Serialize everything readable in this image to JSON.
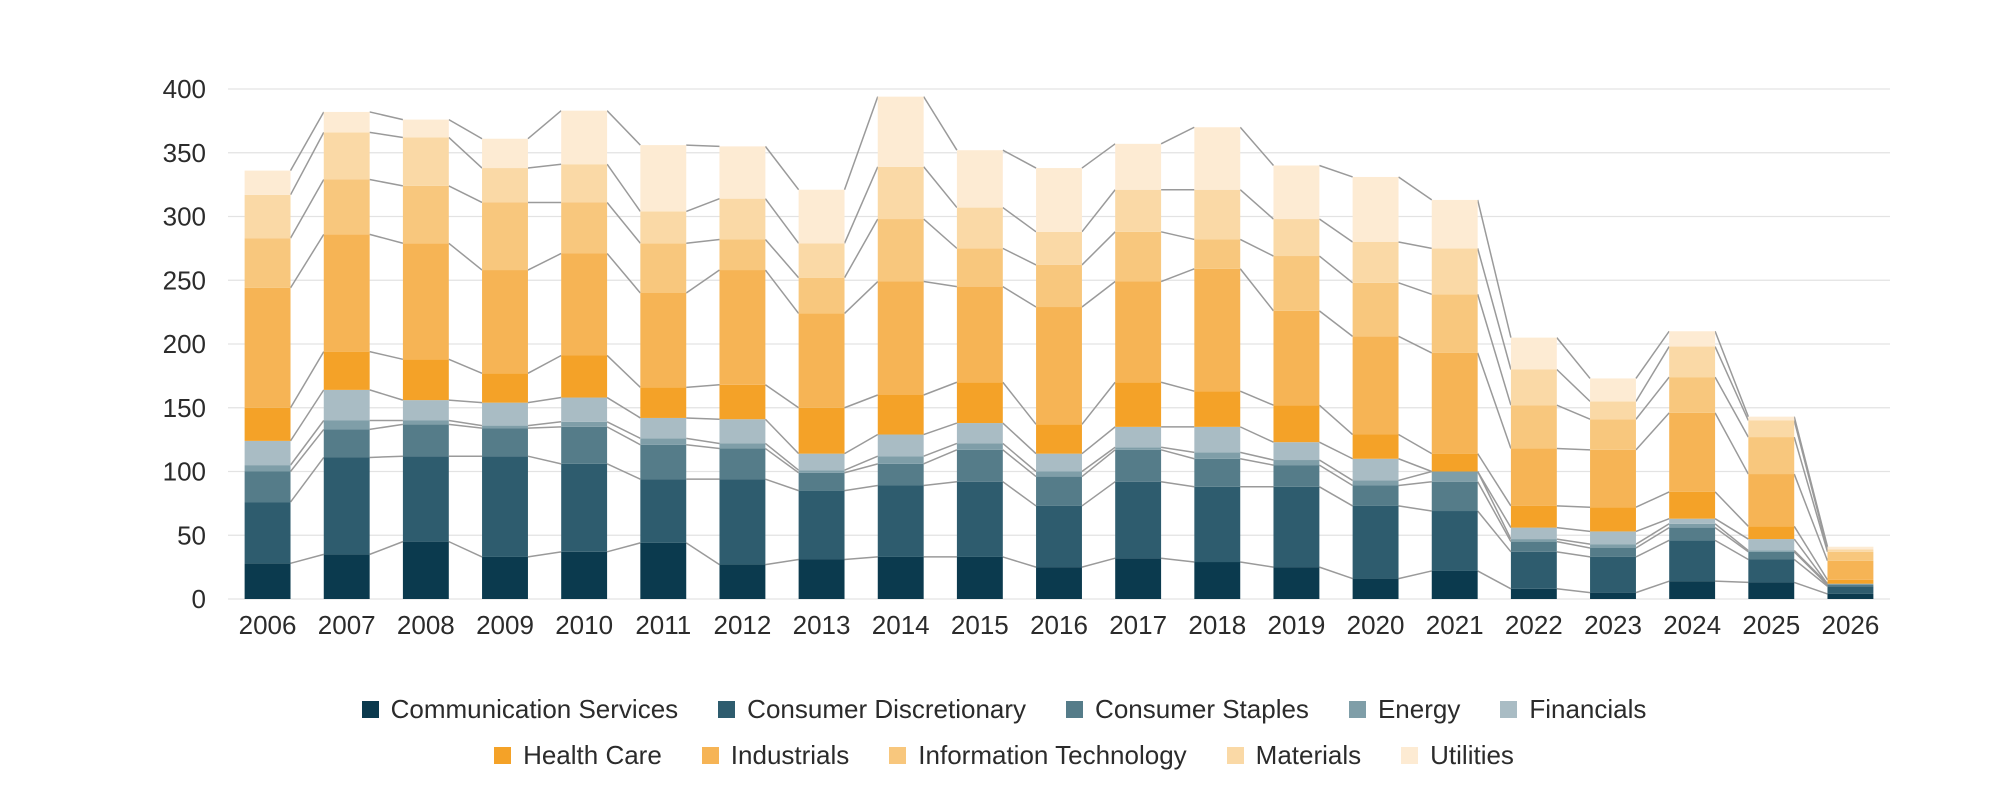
{
  "chart_data": {
    "type": "bar",
    "stacked": true,
    "title": "",
    "xlabel": "",
    "ylabel": "",
    "ylim": [
      0,
      400
    ],
    "yticks": [
      "0",
      "50",
      "100",
      "150",
      "200",
      "250",
      "300",
      "350",
      "400"
    ],
    "grid": true,
    "connector_lines": true,
    "legend_position": "bottom",
    "categories": [
      "2006",
      "2007",
      "2008",
      "2009",
      "2010",
      "2011",
      "2012",
      "2013",
      "2014",
      "2015",
      "2016",
      "2017",
      "2018",
      "2019",
      "2020",
      "2021",
      "2022",
      "2023",
      "2024",
      "2025",
      "2026"
    ],
    "series": [
      {
        "name": "Communication Services",
        "color": "#0b3a4e",
        "values": [
          28,
          35,
          45,
          33,
          37,
          44,
          27,
          31,
          33,
          33,
          25,
          32,
          29,
          25,
          16,
          22,
          8,
          5,
          14,
          13,
          4
        ]
      },
      {
        "name": "Consumer Discretionary",
        "color": "#2e5c6e",
        "values": [
          48,
          76,
          67,
          79,
          69,
          50,
          67,
          54,
          56,
          59,
          48,
          60,
          59,
          63,
          57,
          47,
          29,
          28,
          32,
          18,
          6
        ]
      },
      {
        "name": "Consumer Staples",
        "color": "#557c89",
        "values": [
          24,
          22,
          25,
          22,
          29,
          27,
          24,
          14,
          17,
          25,
          23,
          25,
          22,
          17,
          16,
          23,
          8,
          7,
          10,
          6,
          1
        ]
      },
      {
        "name": "Energy",
        "color": "#7f9ea8",
        "values": [
          5,
          7,
          3,
          2,
          4,
          5,
          4,
          2,
          6,
          5,
          4,
          2,
          5,
          4,
          4,
          8,
          2,
          3,
          3,
          1,
          1
        ]
      },
      {
        "name": "Financials",
        "color": "#a9bcc4",
        "values": [
          19,
          24,
          16,
          18,
          19,
          16,
          19,
          13,
          17,
          16,
          14,
          16,
          20,
          14,
          17,
          0,
          9,
          10,
          4,
          9,
          0
        ]
      },
      {
        "name": "Health Care",
        "color": "#f4a228",
        "values": [
          26,
          30,
          32,
          23,
          33,
          24,
          27,
          36,
          31,
          32,
          23,
          35,
          28,
          29,
          19,
          14,
          17,
          19,
          21,
          10,
          3
        ]
      },
      {
        "name": "Industrials",
        "color": "#f6b455",
        "values": [
          94,
          92,
          91,
          81,
          80,
          74,
          90,
          74,
          89,
          75,
          92,
          79,
          96,
          74,
          77,
          79,
          45,
          45,
          62,
          41,
          15
        ]
      },
      {
        "name": "Information Technology",
        "color": "#f8c77d",
        "values": [
          39,
          43,
          45,
          53,
          40,
          39,
          24,
          28,
          49,
          30,
          33,
          39,
          23,
          43,
          42,
          46,
          34,
          24,
          28,
          29,
          7
        ]
      },
      {
        "name": "Materials",
        "color": "#fad9a6",
        "values": [
          34,
          37,
          38,
          27,
          30,
          25,
          32,
          27,
          41,
          32,
          26,
          33,
          39,
          29,
          32,
          36,
          28,
          14,
          24,
          13,
          2
        ]
      },
      {
        "name": "Utilities",
        "color": "#fdebd3",
        "values": [
          19,
          16,
          14,
          23,
          42,
          52,
          41,
          42,
          55,
          45,
          50,
          36,
          49,
          42,
          51,
          38,
          25,
          18,
          12,
          3,
          2
        ]
      }
    ]
  }
}
